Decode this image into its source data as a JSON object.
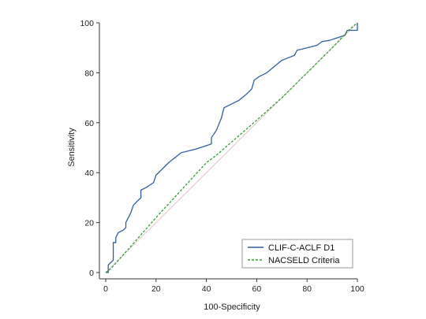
{
  "chart_data": {
    "type": "line",
    "title": "",
    "xlabel": "100-Specificity",
    "ylabel": "Sensitivity",
    "xlim": [
      0,
      100
    ],
    "ylim": [
      0,
      100
    ],
    "xticks": [
      0,
      20,
      40,
      60,
      80,
      100
    ],
    "yticks": [
      0,
      20,
      40,
      60,
      80,
      100
    ],
    "grid": false,
    "legend_position": "bottom-right",
    "reference_line": {
      "from": [
        0,
        0
      ],
      "to": [
        100,
        100
      ],
      "color": "#e6c3c8"
    },
    "series": [
      {
        "name": "CLIF-C-ACLF D1",
        "color": "#2f5f9e",
        "style": "solid",
        "points": [
          [
            0,
            0
          ],
          [
            1,
            0
          ],
          [
            1,
            3
          ],
          [
            2,
            4
          ],
          [
            3,
            5
          ],
          [
            3,
            12
          ],
          [
            4,
            12
          ],
          [
            4,
            14
          ],
          [
            5,
            16
          ],
          [
            7,
            17
          ],
          [
            8,
            18
          ],
          [
            8,
            20
          ],
          [
            10,
            24
          ],
          [
            11,
            27
          ],
          [
            14,
            30
          ],
          [
            14,
            33
          ],
          [
            16,
            34
          ],
          [
            19,
            36
          ],
          [
            20,
            39
          ],
          [
            22,
            41
          ],
          [
            25,
            44
          ],
          [
            30,
            48
          ],
          [
            36,
            49.5
          ],
          [
            42,
            51.5
          ],
          [
            42,
            54
          ],
          [
            44,
            57
          ],
          [
            46,
            62
          ],
          [
            47,
            66
          ],
          [
            50,
            67.5
          ],
          [
            53,
            69
          ],
          [
            56,
            71.5
          ],
          [
            58,
            73.5
          ],
          [
            59,
            77
          ],
          [
            61,
            78.5
          ],
          [
            64,
            80
          ],
          [
            70,
            85
          ],
          [
            75,
            87
          ],
          [
            76,
            89
          ],
          [
            80,
            90
          ],
          [
            84,
            91
          ],
          [
            86,
            92.5
          ],
          [
            89,
            93
          ],
          [
            92,
            94
          ],
          [
            95,
            95
          ],
          [
            96,
            97
          ],
          [
            100,
            97
          ],
          [
            100,
            100
          ]
        ]
      },
      {
        "name": "NACSELD Criteria",
        "color": "#2ea02e",
        "style": "dashed",
        "points": [
          [
            0,
            0
          ],
          [
            2,
            1.5
          ],
          [
            6,
            6
          ],
          [
            10,
            10.5
          ],
          [
            20,
            22
          ],
          [
            30,
            33
          ],
          [
            40,
            44
          ],
          [
            44,
            47
          ],
          [
            52,
            54
          ],
          [
            60,
            61
          ],
          [
            70,
            70
          ],
          [
            80,
            80
          ],
          [
            90,
            90
          ],
          [
            97,
            97.5
          ],
          [
            100,
            100
          ]
        ]
      }
    ]
  }
}
